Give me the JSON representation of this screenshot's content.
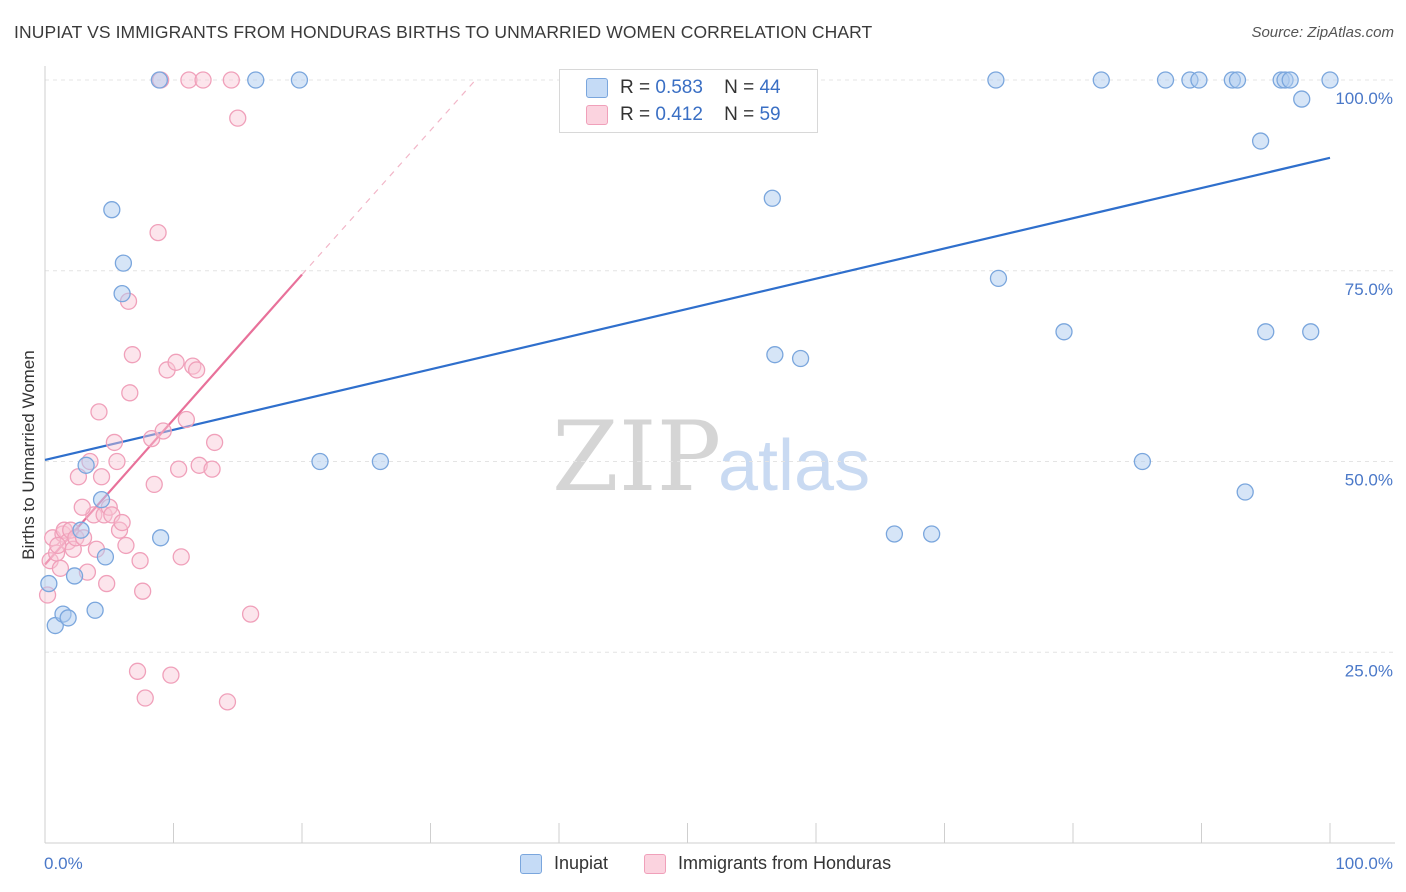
{
  "header": {
    "title": "INUPIAT VS IMMIGRANTS FROM HONDURAS BIRTHS TO UNMARRIED WOMEN CORRELATION CHART",
    "source": "Source: ZipAtlas.com"
  },
  "legend": {
    "rows": [
      {
        "r_label": "R =",
        "r_value": "0.583",
        "n_label": "N =",
        "n_value": "44"
      },
      {
        "r_label": "R =",
        "r_value": "0.412",
        "n_label": "N =",
        "n_value": "59"
      }
    ]
  },
  "bottom_legend": {
    "series_a": "Inupiat",
    "series_b": "Immigrants from Honduras"
  },
  "watermark": {
    "zip": "ZIP",
    "atlas": "atlas"
  },
  "colors": {
    "inupiat_fill": "#aecbf0",
    "inupiat_stroke": "#7aa6dd",
    "inupiat_line": "#2f6fcc",
    "honduras_fill": "#f8c5d4",
    "honduras_stroke": "#f0a0ba",
    "honduras_line": "#e8719a",
    "grid": "#e4e4e4",
    "tick_text": "#4a78c8"
  },
  "chart_data": {
    "type": "scatter",
    "title": "INUPIAT VS IMMIGRANTS FROM HONDURAS BIRTHS TO UNMARRIED WOMEN CORRELATION CHART",
    "xlabel": "",
    "ylabel": "Births to Unmarried Women",
    "xlim": [
      0,
      100
    ],
    "ylim": [
      0,
      100
    ],
    "x_tick_labels": [
      "0.0%",
      "100.0%"
    ],
    "y_tick_labels": [
      "25.0%",
      "50.0%",
      "75.0%",
      "100.0%"
    ],
    "y_ticks": [
      25,
      50,
      75,
      100
    ],
    "grid": true,
    "series": [
      {
        "name": "Inupiat",
        "R": 0.583,
        "N": 44,
        "points": [
          [
            0.3,
            34
          ],
          [
            0.8,
            28.5
          ],
          [
            1.4,
            30
          ],
          [
            1.8,
            29.5
          ],
          [
            2.3,
            35
          ],
          [
            2.8,
            41
          ],
          [
            3.2,
            49.5
          ],
          [
            3.9,
            30.5
          ],
          [
            4.4,
            45
          ],
          [
            4.7,
            37.5
          ],
          [
            5.2,
            83
          ],
          [
            6.1,
            76
          ],
          [
            6.0,
            72
          ],
          [
            8.9,
            100
          ],
          [
            9.0,
            40
          ],
          [
            16.4,
            100
          ],
          [
            19.8,
            100
          ],
          [
            21.4,
            50
          ],
          [
            26.1,
            50
          ],
          [
            52.9,
            100
          ],
          [
            56.6,
            84.5
          ],
          [
            56.8,
            64
          ],
          [
            58.8,
            63.5
          ],
          [
            66.1,
            40.5
          ],
          [
            69.0,
            40.5
          ],
          [
            74.0,
            100
          ],
          [
            74.2,
            74
          ],
          [
            79.3,
            67
          ],
          [
            82.2,
            100
          ],
          [
            85.4,
            50
          ],
          [
            87.2,
            100
          ],
          [
            89.1,
            100
          ],
          [
            89.8,
            100
          ],
          [
            92.4,
            100
          ],
          [
            92.8,
            100
          ],
          [
            93.4,
            46
          ],
          [
            94.6,
            92
          ],
          [
            95.0,
            67
          ],
          [
            96.2,
            100
          ],
          [
            96.5,
            100
          ],
          [
            96.9,
            100
          ],
          [
            97.8,
            97.5
          ],
          [
            98.5,
            67
          ],
          [
            100.0,
            100
          ]
        ],
        "trend": {
          "x0": 0,
          "y0": 50.2,
          "x1": 100,
          "y1": 89.8
        }
      },
      {
        "name": "Immigrants from Honduras",
        "R": 0.412,
        "N": 59,
        "points": [
          [
            0.2,
            32.5
          ],
          [
            0.4,
            37
          ],
          [
            0.6,
            40
          ],
          [
            0.9,
            38
          ],
          [
            1.2,
            36
          ],
          [
            1.4,
            40.5
          ],
          [
            1.5,
            41
          ],
          [
            1.8,
            39.5
          ],
          [
            2.0,
            41
          ],
          [
            2.2,
            38.5
          ],
          [
            2.4,
            40
          ],
          [
            2.6,
            48
          ],
          [
            3.0,
            40
          ],
          [
            3.3,
            35.5
          ],
          [
            3.5,
            50
          ],
          [
            3.8,
            43
          ],
          [
            4.0,
            38.5
          ],
          [
            4.2,
            56.5
          ],
          [
            4.4,
            48
          ],
          [
            4.6,
            43
          ],
          [
            4.8,
            34
          ],
          [
            5.0,
            44
          ],
          [
            5.2,
            43
          ],
          [
            5.4,
            52.5
          ],
          [
            5.6,
            50
          ],
          [
            5.8,
            41
          ],
          [
            6.0,
            42
          ],
          [
            6.3,
            39
          ],
          [
            6.5,
            71
          ],
          [
            6.6,
            59
          ],
          [
            6.8,
            64
          ],
          [
            7.2,
            22.5
          ],
          [
            7.4,
            37
          ],
          [
            7.6,
            33
          ],
          [
            7.8,
            19
          ],
          [
            8.3,
            53
          ],
          [
            8.5,
            47
          ],
          [
            8.8,
            80
          ],
          [
            9.0,
            100
          ],
          [
            9.2,
            54
          ],
          [
            9.5,
            62
          ],
          [
            9.8,
            22
          ],
          [
            10.2,
            63
          ],
          [
            10.4,
            49
          ],
          [
            10.6,
            37.5
          ],
          [
            11.0,
            55.5
          ],
          [
            11.2,
            100
          ],
          [
            11.5,
            62.5
          ],
          [
            11.8,
            62
          ],
          [
            12.0,
            49.5
          ],
          [
            12.3,
            100
          ],
          [
            13.0,
            49
          ],
          [
            13.2,
            52.5
          ],
          [
            14.2,
            18.5
          ],
          [
            14.5,
            100
          ],
          [
            15.0,
            95
          ],
          [
            16.0,
            30
          ],
          [
            1.0,
            39
          ],
          [
            2.9,
            44
          ]
        ],
        "trend": {
          "x0": 0,
          "y0": 36.5,
          "x1": 20,
          "y1": 74.5,
          "dashed_to_x": 33.5,
          "dashed_to_y": 100
        }
      }
    ]
  }
}
